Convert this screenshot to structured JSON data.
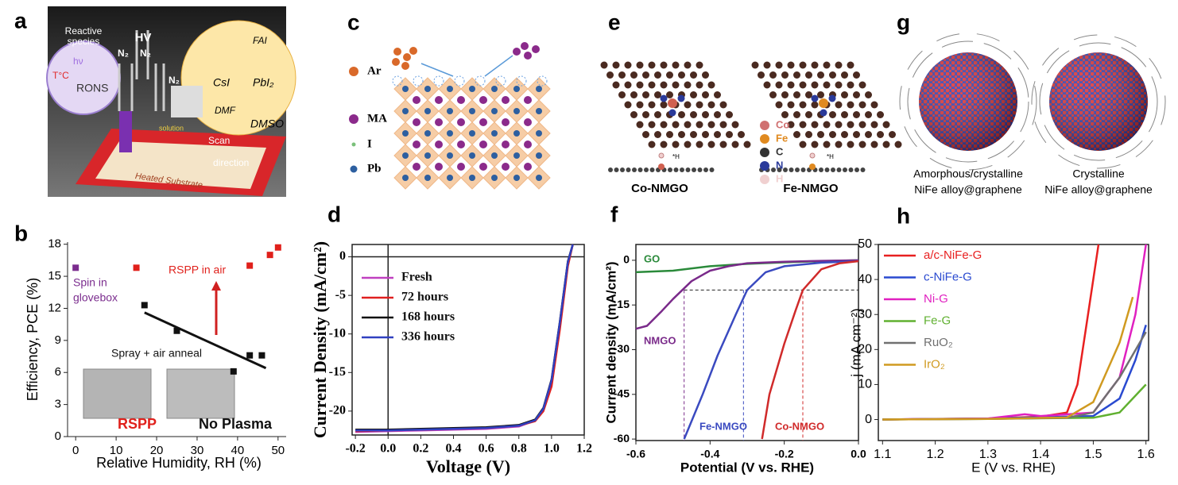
{
  "panel_labels": [
    "a",
    "b",
    "c",
    "d",
    "e",
    "f",
    "g",
    "h"
  ],
  "illustrations": {
    "a": {
      "texts": [
        "Reactive",
        "species",
        "HV",
        "N₂",
        "N₂",
        "N₂",
        "hν",
        "T°C",
        "RONS",
        "FAI",
        "CsI",
        "PbI₂",
        "DMF",
        "DMSO",
        "solution",
        "Scan",
        "direction",
        "Heated Substrate"
      ]
    },
    "c": {
      "legend": [
        "Ar",
        "MA",
        "I",
        "Pb"
      ]
    },
    "e": {
      "structures": [
        "Co-NMGO",
        "Fe-NMGO"
      ],
      "legend": [
        "Co",
        "Fe",
        "C",
        "N",
        "H"
      ],
      "adsorbate": "*H"
    },
    "g": {
      "captions": [
        [
          "Amorphous/crystalline",
          "NiFe alloy@graphene"
        ],
        [
          "Crystalline",
          "NiFe alloy@graphene"
        ]
      ]
    }
  },
  "chart_data": [
    {
      "type": "scatter",
      "panel": "b",
      "x_label": "Relative Humidity, RH (%)",
      "y_label": "Efficiency, PCE (%)",
      "xlim": [
        -2,
        52
      ],
      "ylim": [
        0,
        18.2
      ],
      "xticks": [
        0,
        10,
        20,
        30,
        40,
        50
      ],
      "yticks": [
        0,
        3,
        6,
        9,
        12,
        15,
        18
      ],
      "series": [
        {
          "color": "#7b2d8e",
          "x": [
            0
          ],
          "values": [
            15.8
          ]
        },
        {
          "color": "#e0201b",
          "x": [
            15,
            43,
            48,
            50
          ],
          "values": [
            15.8,
            16,
            17,
            17.7
          ]
        },
        {
          "color": "#111111",
          "x": [
            17,
            25,
            39,
            43,
            46
          ],
          "values": [
            12.3,
            9.9,
            6.1,
            7.6,
            7.6
          ]
        },
        {
          "type": "line",
          "color": "#111111",
          "x": [
            17,
            47
          ],
          "values": [
            11.6,
            6.4
          ]
        }
      ],
      "annotations": [
        "Spin in",
        "glovebox",
        "RSPP in air",
        "Spray + air anneal",
        "RSPP",
        "No Plasma"
      ]
    },
    {
      "type": "line",
      "panel": "d",
      "x_label": "Voltage (V)",
      "y_label": "Current Density (mA/cm²)",
      "xlim": [
        -0.22,
        1.2
      ],
      "ylim": [
        -23.1,
        1.6
      ],
      "xticks": [
        -0.2,
        {
          "value": 0,
          "label": "0.0"
        },
        0.2,
        0.4,
        0.6,
        0.8,
        {
          "value": 1,
          "label": "1.0"
        },
        1.2
      ],
      "yticks": [
        0,
        -5,
        -10,
        -15,
        -20
      ],
      "x": [
        -0.2,
        0,
        0.2,
        0.4,
        0.6,
        0.8,
        0.9,
        0.95,
        1.0,
        1.05,
        1.1,
        1.13
      ],
      "series": [
        {
          "name": "Fresh",
          "color": "#c040c0",
          "values": [
            -22.7,
            -22.6,
            -22.5,
            -22.4,
            -22.3,
            -22.0,
            -21.2,
            -19.8,
            -16.2,
            -8.8,
            -0.8,
            1.6
          ]
        },
        {
          "name": "72 hours",
          "color": "#e02020",
          "values": [
            -22.6,
            -22.5,
            -22.4,
            -22.3,
            -22.2,
            -21.9,
            -21.3,
            -20.0,
            -16.8,
            -9.5,
            -1.2,
            1.6
          ]
        },
        {
          "name": "168 hours",
          "color": "#111111",
          "values": [
            -22.4,
            -22.4,
            -22.3,
            -22.2,
            -22.1,
            -21.8,
            -21.1,
            -19.6,
            -15.9,
            -8.5,
            -0.6,
            1.6
          ]
        },
        {
          "name": "336 hours",
          "color": "#3040c0",
          "values": [
            -22.5,
            -22.5,
            -22.4,
            -22.3,
            -22.2,
            -21.9,
            -21.2,
            -19.7,
            -16.0,
            -8.6,
            -0.7,
            1.6
          ]
        }
      ],
      "legend": "upper-left"
    },
    {
      "type": "line",
      "panel": "f",
      "x_label": "Potential (V vs. RHE)",
      "y_label": "Current density (mA/cm²)",
      "xlim": [
        -0.6,
        0
      ],
      "ylim": [
        -60.5,
        5.3
      ],
      "xticks": [
        -0.6,
        -0.4,
        -0.2,
        {
          "value": 0,
          "label": "0.0"
        }
      ],
      "yticks": [
        0,
        -15,
        -30,
        -45,
        -60
      ],
      "guides": {
        "y": -10,
        "x": [
          -0.47,
          -0.31,
          -0.15
        ]
      },
      "series": [
        {
          "name": "GO",
          "color": "#2a8a3a",
          "x": [
            -0.6,
            -0.5,
            -0.4,
            -0.3,
            -0.2,
            -0.1,
            0
          ],
          "values": [
            -4,
            -3.5,
            -2,
            -1.2,
            -0.7,
            -0.3,
            0
          ]
        },
        {
          "name": "NMGO",
          "color": "#7a2a8a",
          "x": [
            -0.6,
            -0.57,
            -0.53,
            -0.5,
            -0.45,
            -0.4,
            -0.35,
            -0.3,
            -0.2,
            -0.1,
            0
          ],
          "values": [
            -23,
            -22,
            -17,
            -13,
            -7,
            -3.5,
            -2,
            -1,
            -0.5,
            -0.2,
            0
          ]
        },
        {
          "name": "Fe-NMGO",
          "color": "#3a4ac0",
          "x": [
            -0.47,
            -0.42,
            -0.38,
            -0.33,
            -0.3,
            -0.25,
            -0.2,
            -0.1,
            0
          ],
          "values": [
            -60,
            -45,
            -32,
            -18,
            -10,
            -4,
            -2,
            -0.8,
            -0.3
          ]
        },
        {
          "name": "Co-NMGO",
          "color": "#d02a2a",
          "x": [
            -0.26,
            -0.24,
            -0.2,
            -0.17,
            -0.15,
            -0.1,
            -0.05,
            0
          ],
          "values": [
            -60,
            -45,
            -28,
            -17,
            -10,
            -3,
            -1,
            -0.3
          ]
        }
      ]
    },
    {
      "type": "line",
      "panel": "h",
      "x_label": "E (V vs. RHE)",
      "y_label": "j (mA cm⁻²)",
      "xlim": [
        1.092,
        1.605
      ],
      "ylim": [
        -6,
        50
      ],
      "xticks": [
        1.1,
        1.2,
        1.3,
        1.4,
        1.5,
        1.6
      ],
      "yticks": [
        0,
        10,
        20,
        30,
        40,
        50
      ],
      "series": [
        {
          "name": "a/c-NiFe-G",
          "color": "#e82020",
          "x": [
            1.1,
            1.2,
            1.3,
            1.4,
            1.45,
            1.47,
            1.49,
            1.51
          ],
          "values": [
            0,
            0.2,
            0.3,
            0.8,
            2,
            10,
            30,
            50
          ]
        },
        {
          "name": "c-NiFe-G",
          "color": "#2a4ad0",
          "x": [
            1.1,
            1.3,
            1.5,
            1.55,
            1.58,
            1.6
          ],
          "values": [
            0,
            0.3,
            1,
            6,
            17,
            27
          ]
        },
        {
          "name": "Ni-G",
          "color": "#e020c0",
          "x": [
            1.1,
            1.3,
            1.37,
            1.4,
            1.5,
            1.55,
            1.58,
            1.6
          ],
          "values": [
            0,
            0.3,
            1.5,
            1,
            2,
            12,
            30,
            50
          ]
        },
        {
          "name": "Fe-G",
          "color": "#60b030",
          "x": [
            1.1,
            1.3,
            1.5,
            1.55,
            1.6
          ],
          "values": [
            0,
            0.2,
            0.5,
            2,
            10
          ]
        },
        {
          "name": "RuO₂",
          "color": "#707070",
          "x": [
            1.1,
            1.3,
            1.45,
            1.5,
            1.55,
            1.6
          ],
          "values": [
            0,
            0.2,
            0.5,
            2,
            12,
            25
          ]
        },
        {
          "name": "IrO₂",
          "color": "#d09a20",
          "x": [
            1.1,
            1.3,
            1.45,
            1.5,
            1.55,
            1.575
          ],
          "values": [
            0,
            0.2,
            0.6,
            5,
            22,
            35
          ]
        }
      ],
      "legend": "upper-left"
    }
  ]
}
